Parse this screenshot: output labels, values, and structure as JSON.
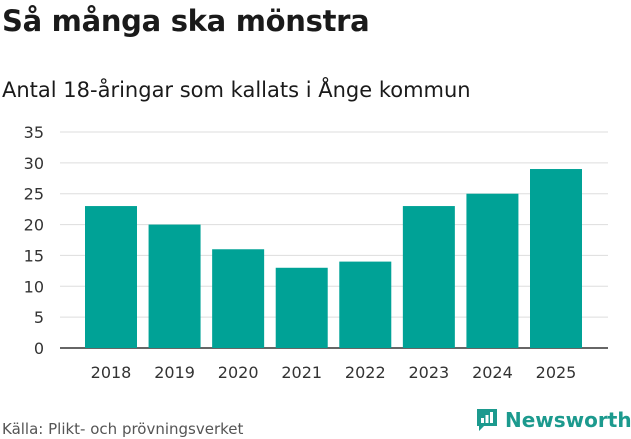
{
  "title": "Så många ska mönstra",
  "subtitle": "Antal 18-åringar som kallats i Ånge kommun",
  "source": "Källa: Plikt- och prövningsverket",
  "brand": {
    "name": "Newsworthy",
    "icon": "newsworthy-logo-icon",
    "color": "#1c9a8e"
  },
  "chart_data": {
    "type": "bar",
    "title": "Så många ska mönstra",
    "subtitle": "Antal 18-åringar som kallats i Ånge kommun",
    "categories": [
      "2018",
      "2019",
      "2020",
      "2021",
      "2022",
      "2023",
      "2024",
      "2025"
    ],
    "values": [
      23,
      20,
      16,
      13,
      14,
      23,
      25,
      29
    ],
    "xlabel": "",
    "ylabel": "",
    "ylim": [
      0,
      35
    ],
    "yticks": [
      0,
      5,
      10,
      15,
      20,
      25,
      30,
      35
    ],
    "grid": true,
    "bar_color": "#00a296"
  }
}
